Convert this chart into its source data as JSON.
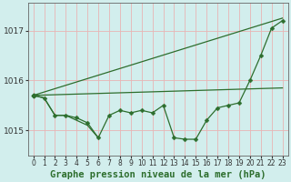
{
  "title": "Graphe pression niveau de la mer (hPa)",
  "bg_color": "#d2eeed",
  "grid_color": "#e8b4b4",
  "line_color": "#2d6e2d",
  "x_hours": [
    0,
    1,
    2,
    3,
    4,
    5,
    6,
    7,
    8,
    9,
    10,
    11,
    12,
    13,
    14,
    15,
    16,
    17,
    18,
    19,
    20,
    21,
    22,
    23
  ],
  "main_line": [
    1015.7,
    1015.65,
    1015.3,
    1015.3,
    1015.25,
    1015.15,
    1014.85,
    1015.3,
    1015.4,
    1015.35,
    1015.4,
    1015.35,
    1015.5,
    1014.85,
    1014.82,
    1014.82,
    1015.2,
    1015.45,
    1015.5,
    1015.55,
    1016.0,
    1016.5,
    1017.05,
    1017.2
  ],
  "straight_line_x": [
    0,
    23
  ],
  "straight_line_y": [
    1015.7,
    1017.25
  ],
  "flat_line_x": [
    0,
    23
  ],
  "flat_line_y": [
    1015.7,
    1015.85
  ],
  "short_line_x": [
    0,
    1,
    2,
    3,
    4,
    5,
    6
  ],
  "short_line_y": [
    1015.7,
    1015.65,
    1015.3,
    1015.3,
    1015.2,
    1015.1,
    1014.85
  ],
  "ylim": [
    1014.5,
    1017.55
  ],
  "xlim": [
    -0.5,
    23.5
  ],
  "yticks": [
    1015,
    1016,
    1017
  ],
  "xticks": [
    0,
    1,
    2,
    3,
    4,
    5,
    6,
    7,
    8,
    9,
    10,
    11,
    12,
    13,
    14,
    15,
    16,
    17,
    18,
    19,
    20,
    21,
    22,
    23
  ],
  "xlabel_fontsize": 7.5,
  "tick_fontsize": 6.5
}
